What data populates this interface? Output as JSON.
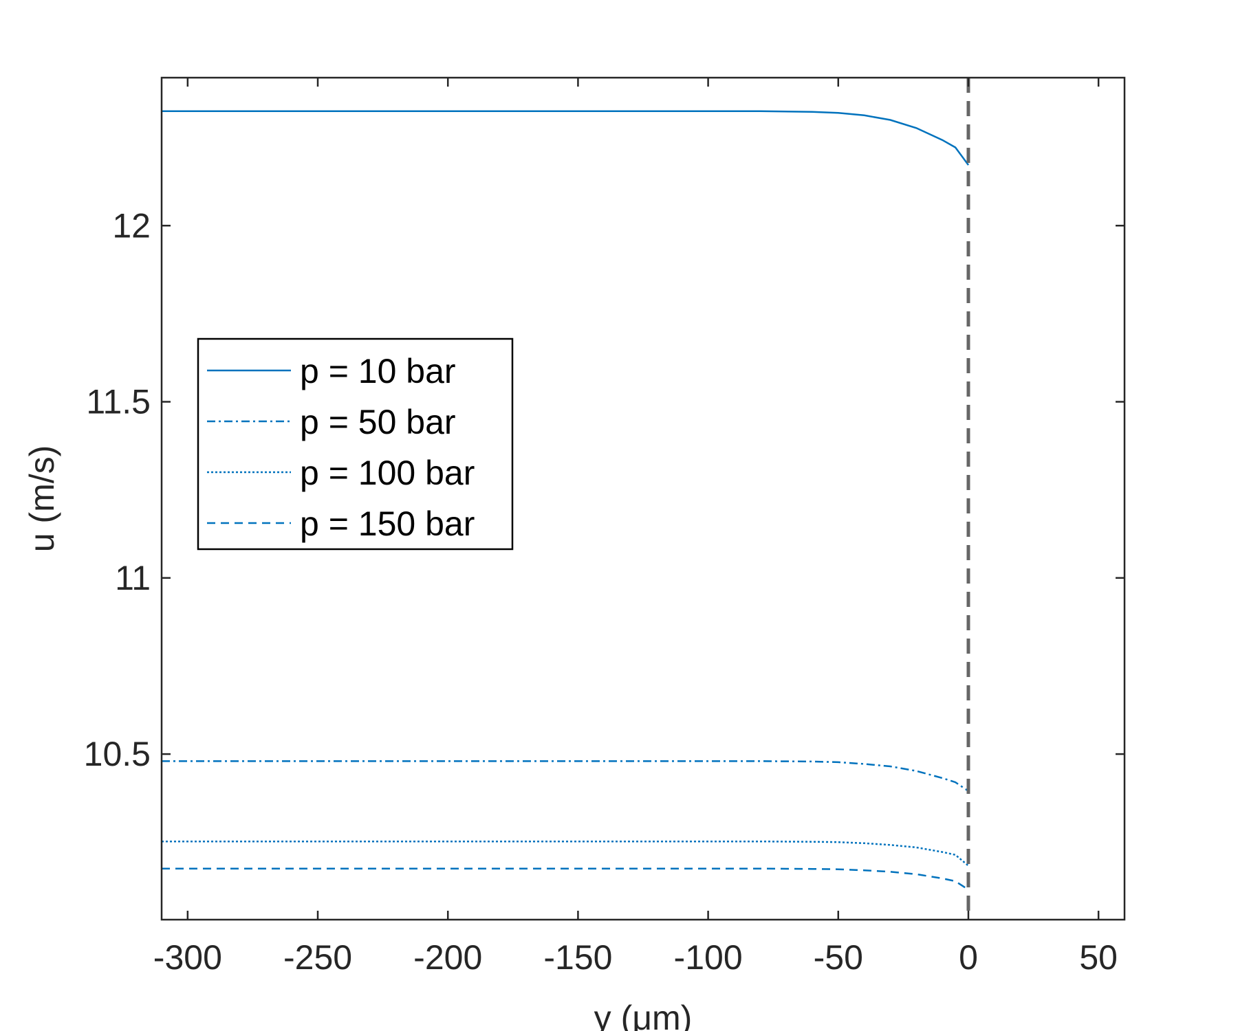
{
  "chart_data": {
    "type": "line",
    "xlabel": "y (μm)",
    "ylabel": "u (m/s)",
    "xlim": [
      -310,
      60
    ],
    "ylim": [
      10.03,
      12.42
    ],
    "xticks": [
      -300,
      -250,
      -200,
      -150,
      -100,
      -50,
      0,
      50
    ],
    "yticks": [
      10.5,
      11,
      11.5,
      12
    ],
    "xtick_labels": [
      "-300",
      "-250",
      "-200",
      "-150",
      "-100",
      "-50",
      "0",
      "50"
    ],
    "ytick_labels": [
      "10.5",
      "11",
      "11.5",
      "12"
    ],
    "grid": false,
    "legend_placement": "center-left",
    "interface_line": {
      "x": 0,
      "style": "dashed",
      "color": "#666666"
    },
    "series": [
      {
        "name": "p = 10 bar",
        "linestyle": "solid",
        "color": "#0072BD",
        "x": [
          -310,
          -150,
          -80,
          -60,
          -50,
          -40,
          -30,
          -20,
          -10,
          -5,
          0
        ],
        "y": [
          12.325,
          12.325,
          12.325,
          12.323,
          12.32,
          12.313,
          12.3,
          12.277,
          12.243,
          12.222,
          12.172
        ]
      },
      {
        "name": "p = 50 bar",
        "linestyle": "dashdot",
        "color": "#0072BD",
        "x": [
          -310,
          -150,
          -80,
          -60,
          -50,
          -40,
          -30,
          -20,
          -10,
          -5,
          0
        ],
        "y": [
          10.48,
          10.48,
          10.48,
          10.479,
          10.477,
          10.472,
          10.465,
          10.452,
          10.432,
          10.42,
          10.395
        ]
      },
      {
        "name": "p = 100 bar",
        "linestyle": "dotted",
        "color": "#0072BD",
        "x": [
          -310,
          -150,
          -80,
          -60,
          -50,
          -40,
          -30,
          -20,
          -10,
          -5,
          0
        ],
        "y": [
          10.252,
          10.252,
          10.252,
          10.251,
          10.25,
          10.247,
          10.242,
          10.235,
          10.222,
          10.214,
          10.183
        ]
      },
      {
        "name": "p = 150 bar",
        "linestyle": "dashed",
        "color": "#0072BD",
        "x": [
          -310,
          -150,
          -80,
          -60,
          -50,
          -40,
          -30,
          -20,
          -10,
          -5,
          0
        ],
        "y": [
          10.175,
          10.175,
          10.175,
          10.174,
          10.173,
          10.17,
          10.166,
          10.159,
          10.147,
          10.139,
          10.115
        ]
      }
    ]
  }
}
